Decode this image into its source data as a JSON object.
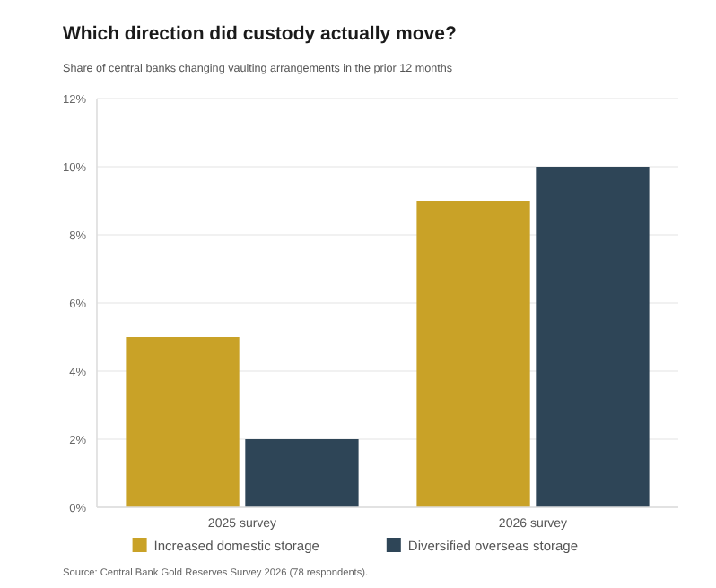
{
  "chart_data": {
    "type": "bar",
    "title": "Which direction did custody actually move?",
    "subtitle": "Share of central banks changing vaulting arrangements in the prior 12 months",
    "categories": [
      "2025 survey",
      "2026 survey"
    ],
    "series": [
      {
        "name": "Increased domestic storage",
        "color": "#c9a227",
        "values": [
          5,
          9
        ]
      },
      {
        "name": "Diversified overseas storage",
        "color": "#2e4557",
        "values": [
          2,
          10
        ]
      }
    ],
    "ylim": [
      0,
      12
    ],
    "yticks": [
      {
        "value": 0,
        "label": "0%"
      },
      {
        "value": 2,
        "label": "2%"
      },
      {
        "value": 4,
        "label": "4%"
      },
      {
        "value": 6,
        "label": "6%"
      },
      {
        "value": 8,
        "label": "8%"
      },
      {
        "value": 10,
        "label": "10%"
      },
      {
        "value": 12,
        "label": "12%"
      }
    ],
    "grid": "y",
    "legend": "bottom",
    "annotations": [
      "Source: Central Bank Gold Reserves Survey 2026 (78 respondents)."
    ]
  }
}
